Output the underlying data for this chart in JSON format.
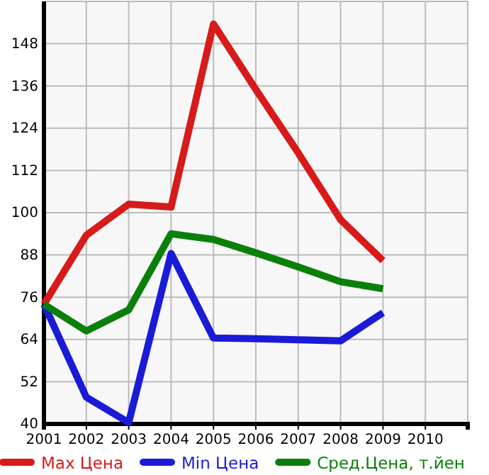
{
  "chart_data": {
    "type": "line",
    "x": [
      2001,
      2002,
      2003,
      2004,
      2005,
      2006,
      2007,
      2008,
      2009
    ],
    "xlim": [
      2001,
      2011
    ],
    "xticks": [
      2001,
      2002,
      2003,
      2004,
      2005,
      2006,
      2007,
      2008,
      2009,
      2010
    ],
    "ylim": [
      40,
      160
    ],
    "yticks": [
      40,
      52,
      64,
      76,
      88,
      100,
      112,
      124,
      136,
      148
    ],
    "grid": true,
    "legend": "bottom",
    "marker": "none",
    "line_style": "solid",
    "series": [
      {
        "name": "Max Цена",
        "color": "#d71a1a",
        "values": [
          74,
          93.6,
          102.4,
          101.6,
          153.6,
          135,
          117,
          98,
          86.4
        ]
      },
      {
        "name": "Min Цена",
        "color": "#1a1ad7",
        "values": [
          74,
          47.6,
          40.4,
          88.4,
          64.4,
          64.2,
          63.9,
          63.6,
          71.6
        ]
      },
      {
        "name": "Сред.Цена, т.йен",
        "color": "#0a800a",
        "values": [
          74,
          66.4,
          72.4,
          94,
          92.4,
          88.6,
          84.6,
          80.4,
          78.4
        ]
      }
    ]
  }
}
